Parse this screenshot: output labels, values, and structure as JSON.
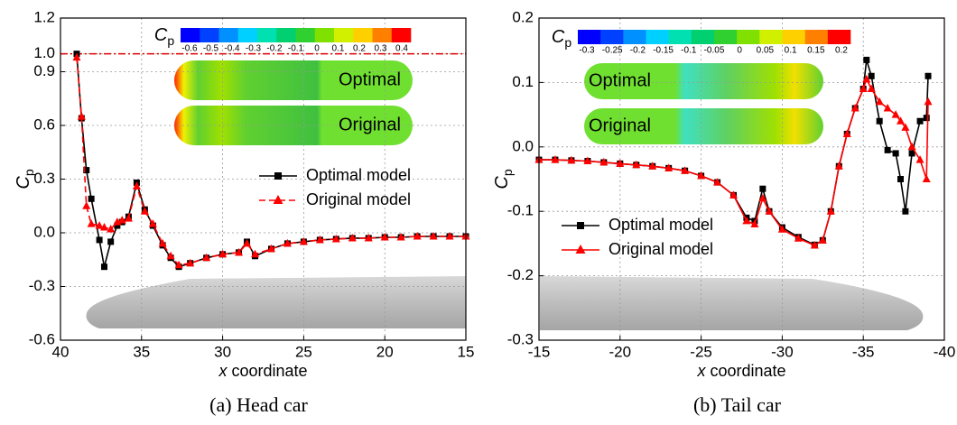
{
  "chart_data": [
    {
      "type": "line",
      "caption": "(a) Head car",
      "xlabel": {
        "var": "x",
        "text": "coordinate"
      },
      "ylabel": {
        "symbol": "C",
        "subscript": "p"
      },
      "xlim": [
        40,
        15
      ],
      "xticks": [
        40,
        35,
        30,
        25,
        20,
        15
      ],
      "ylim": [
        -0.6,
        1.2
      ],
      "yticks": [
        -0.6,
        -0.3,
        {
          "value": 0,
          "label": "0.0"
        },
        0.3,
        0.6,
        0.9,
        {
          "value": 1,
          "label": "1.0"
        },
        1.2
      ],
      "grid": true,
      "legend": "center",
      "reference_line": {
        "value": 1.0,
        "color": "#e00000"
      },
      "colorbar": {
        "symbol": "C",
        "subscript": "p",
        "labels": [
          "-0.6",
          "-0.5",
          "-0.4",
          "-0.3",
          "-0.2",
          "-0.1",
          "0",
          "0.1",
          "0.2",
          "0.3",
          "0.4"
        ],
        "colors": [
          "#0000ff",
          "#0040ff",
          "#0090ff",
          "#00d0ff",
          "#00e0b0",
          "#00d070",
          "#30d030",
          "#80e000",
          "#d0f000",
          "#ffd000",
          "#ff8000",
          "#ff0000"
        ]
      },
      "images": [
        "Optimal",
        "Original"
      ],
      "x": [
        39,
        38.7,
        38.4,
        38.1,
        37.6,
        37.3,
        36.9,
        36.5,
        36.2,
        35.8,
        35.3,
        34.8,
        34.3,
        33.7,
        33.2,
        32.7,
        32,
        31,
        30,
        29,
        28.5,
        28,
        27,
        26,
        25,
        24,
        23,
        22,
        21,
        20,
        19,
        18,
        17,
        16,
        15
      ],
      "series": [
        {
          "name": "Optimal model",
          "color": "#000000",
          "marker": "square",
          "dashed": false,
          "values": [
            1.0,
            0.64,
            0.35,
            0.19,
            -0.04,
            -0.19,
            -0.05,
            0.04,
            0.06,
            0.09,
            0.28,
            0.13,
            0.04,
            -0.07,
            -0.14,
            -0.19,
            -0.17,
            -0.14,
            -0.12,
            -0.11,
            -0.05,
            -0.13,
            -0.09,
            -0.06,
            -0.05,
            -0.04,
            -0.035,
            -0.03,
            -0.03,
            -0.025,
            -0.025,
            -0.02,
            -0.02,
            -0.02,
            -0.02
          ]
        },
        {
          "name": "Original model",
          "color": "#ff0000",
          "marker": "triangle",
          "dashed": true,
          "values": [
            0.98,
            0.65,
            0.15,
            0.05,
            0.04,
            0.03,
            0.02,
            0.06,
            0.07,
            0.08,
            0.26,
            0.12,
            0.05,
            -0.06,
            -0.13,
            -0.18,
            -0.17,
            -0.14,
            -0.12,
            -0.11,
            -0.06,
            -0.12,
            -0.09,
            -0.06,
            -0.05,
            -0.04,
            -0.035,
            -0.03,
            -0.03,
            -0.025,
            -0.025,
            -0.02,
            -0.02,
            -0.02,
            -0.02
          ]
        }
      ]
    },
    {
      "type": "line",
      "caption": "(b) Tail car",
      "xlabel": {
        "var": "x",
        "text": "coordinate"
      },
      "ylabel": {
        "symbol": "C",
        "subscript": "p"
      },
      "xlim": [
        -15,
        -40
      ],
      "xticks": [
        -15,
        -20,
        -25,
        -30,
        -35,
        -40
      ],
      "ylim": [
        -0.3,
        0.2
      ],
      "yticks": [
        -0.3,
        -0.2,
        -0.1,
        {
          "value": 0,
          "label": "0.0"
        },
        0.1,
        0.2
      ],
      "grid": true,
      "legend": "lower left",
      "colorbar": {
        "symbol": "C",
        "subscript": "p",
        "labels": [
          "-0.3",
          "-0.25",
          "-0.2",
          "-0.15",
          "-0.1",
          "-0.05",
          "0",
          "0.05",
          "0.1",
          "0.15",
          "0.2"
        ],
        "colors": [
          "#0000ff",
          "#0040ff",
          "#0090ff",
          "#00d0ff",
          "#00e0b0",
          "#00d070",
          "#30d030",
          "#80e000",
          "#d0f000",
          "#ffd000",
          "#ff8000",
          "#ff0000"
        ]
      },
      "images": [
        "Optimal",
        "Original"
      ],
      "x": [
        -15,
        -16,
        -17,
        -18,
        -19,
        -20,
        -21,
        -22,
        -23,
        -24,
        -25,
        -26,
        -27,
        -27.8,
        -28.3,
        -28.8,
        -29.2,
        -30,
        -31,
        -32,
        -32.5,
        -33,
        -33.5,
        -34,
        -34.5,
        -35,
        -35.2,
        -35.5,
        -36,
        -36.5,
        -37,
        -37.3,
        -37.6,
        -38,
        -38.5,
        -38.9,
        -39
      ],
      "series": [
        {
          "name": "Optimal model",
          "color": "#000000",
          "marker": "square",
          "dashed": false,
          "values": [
            -0.02,
            -0.02,
            -0.021,
            -0.022,
            -0.024,
            -0.026,
            -0.028,
            -0.03,
            -0.033,
            -0.037,
            -0.045,
            -0.055,
            -0.075,
            -0.11,
            -0.115,
            -0.065,
            -0.1,
            -0.125,
            -0.14,
            -0.152,
            -0.145,
            -0.1,
            -0.03,
            0.02,
            0.06,
            0.09,
            0.135,
            0.11,
            0.04,
            -0.005,
            -0.01,
            -0.05,
            -0.1,
            -0.01,
            0.04,
            0.045,
            0.11
          ]
        },
        {
          "name": "Original model",
          "color": "#ff0000",
          "marker": "triangle",
          "dashed": false,
          "values": [
            -0.02,
            -0.02,
            -0.021,
            -0.022,
            -0.024,
            -0.026,
            -0.028,
            -0.03,
            -0.033,
            -0.037,
            -0.045,
            -0.055,
            -0.075,
            -0.115,
            -0.12,
            -0.08,
            -0.1,
            -0.128,
            -0.142,
            -0.153,
            -0.145,
            -0.1,
            -0.03,
            0.02,
            0.06,
            0.09,
            0.105,
            0.09,
            0.07,
            0.06,
            0.05,
            0.04,
            0.03,
            0.0,
            -0.02,
            -0.05,
            0.07
          ]
        }
      ]
    }
  ]
}
